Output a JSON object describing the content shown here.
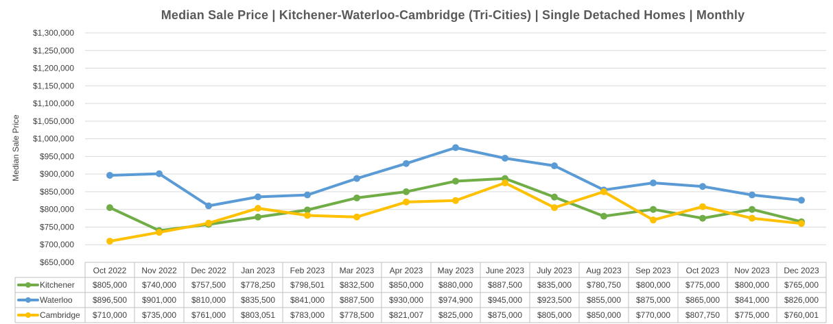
{
  "chart_data": {
    "type": "line",
    "title": "Median Sale Price | Kitchener-Waterloo-Cambridge (Tri-Cities) | Single Detached Homes | Monthly",
    "xlabel": "",
    "ylabel": "Median Sale Price",
    "ylim": [
      650000,
      1300000
    ],
    "ytick_step": 50000,
    "yticks": [
      "$650,000",
      "$700,000",
      "$750,000",
      "$800,000",
      "$850,000",
      "$900,000",
      "$950,000",
      "$1,000,000",
      "$1,050,000",
      "$1,100,000",
      "$1,150,000",
      "$1,200,000",
      "$1,250,000",
      "$1,300,000"
    ],
    "categories": [
      "Oct 2022",
      "Nov 2022",
      "Dec 2022",
      "Jan 2023",
      "Feb 2023",
      "Mar 2023",
      "Apr 2023",
      "May 2023",
      "June 2023",
      "July 2023",
      "Aug 2023",
      "Sep 2023",
      "Oct 2023",
      "Nov 2023",
      "Dec 2023"
    ],
    "series": [
      {
        "name": "Kitchener",
        "color": "#70ad47",
        "values": [
          805000,
          740000,
          757500,
          778250,
          798501,
          832500,
          850000,
          880000,
          887500,
          835000,
          780750,
          800000,
          775000,
          800000,
          765000
        ],
        "labels": [
          "$805,000",
          "$740,000",
          "$757,500",
          "$778,250",
          "$798,501",
          "$832,500",
          "$850,000",
          "$880,000",
          "$887,500",
          "$835,000",
          "$780,750",
          "$800,000",
          "$775,000",
          "$800,000",
          "$765,000"
        ]
      },
      {
        "name": "Waterloo",
        "color": "#5b9bd5",
        "values": [
          896500,
          901000,
          810000,
          835500,
          841000,
          887500,
          930000,
          974900,
          945000,
          923500,
          855000,
          875000,
          865000,
          841000,
          826000
        ],
        "labels": [
          "$896,500",
          "$901,000",
          "$810,000",
          "$835,500",
          "$841,000",
          "$887,500",
          "$930,000",
          "$974,900",
          "$945,000",
          "$923,500",
          "$855,000",
          "$875,000",
          "$865,000",
          "$841,000",
          "$826,000"
        ]
      },
      {
        "name": "Cambridge",
        "color": "#ffc000",
        "values": [
          710000,
          735000,
          761000,
          803051,
          783000,
          778500,
          821007,
          825000,
          875000,
          805000,
          850000,
          770000,
          807750,
          775000,
          760001
        ],
        "labels": [
          "$710,000",
          "$735,000",
          "$761,000",
          "$803,051",
          "$783,000",
          "$778,500",
          "$821,007",
          "$825,000",
          "$875,000",
          "$805,000",
          "$850,000",
          "$770,000",
          "$807,750",
          "$775,000",
          "$760,001"
        ]
      }
    ]
  }
}
